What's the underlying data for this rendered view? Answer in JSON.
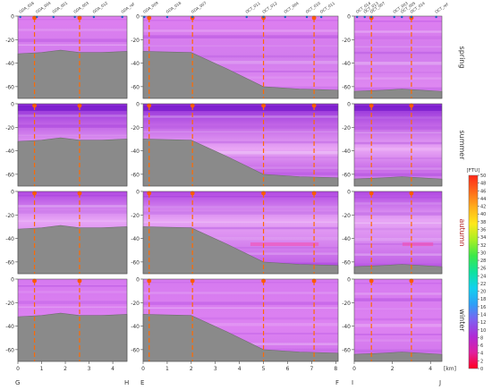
{
  "chart_data": {
    "type": "heatmap",
    "title": "",
    "colorbar": {
      "unit": "[FTU]",
      "ticks": [
        0,
        2,
        4,
        6,
        8,
        10,
        12,
        14,
        16,
        18,
        20,
        22,
        24,
        26,
        28,
        30,
        32,
        34,
        36,
        38,
        40,
        42,
        44,
        46,
        48,
        50
      ],
      "colors": [
        "#ff0020",
        "#e0209f",
        "#b02bd6",
        "#7f5ff0",
        "#2d9ff7",
        "#11d1ee",
        "#0fe29d",
        "#3be84a",
        "#a9ef24",
        "#ffe81a",
        "#ffb01c",
        "#ff6a1a",
        "#ff2818"
      ]
    },
    "seasons": [
      "spring",
      "summer",
      "autumn",
      "winter"
    ],
    "y_ticks": [
      0,
      -20,
      -40,
      -60
    ],
    "ylim": [
      -70,
      0
    ],
    "xlabel_unit": "[km]",
    "sections": [
      {
        "start_label": "G",
        "end_label": "H",
        "xlim": [
          0,
          4.6
        ],
        "x_ticks": [
          0,
          1,
          2,
          3,
          4
        ],
        "station_labels": [
          "GDA_016",
          "GDA_004",
          "GDA_001",
          "GDA_003",
          "GDA_012",
          "GDA_ref"
        ],
        "station_x": [
          0.1,
          0.8,
          1.5,
          2.4,
          3.2,
          4.4
        ],
        "profile_x": [
          0.7,
          2.6
        ],
        "bottom": [
          [
            0,
            -32
          ],
          [
            1,
            -31
          ],
          [
            1.8,
            -29
          ],
          [
            2.6,
            -31
          ],
          [
            3.5,
            -31
          ],
          [
            4.6,
            -30
          ]
        ]
      },
      {
        "start_label": "E",
        "end_label": "F",
        "xlim": [
          0,
          8.1
        ],
        "x_ticks": [
          0,
          1,
          2,
          3,
          4,
          5,
          6,
          7,
          8
        ],
        "station_labels": [
          "GDA_009",
          "GDA_018",
          "GDA_007",
          "OCT_011",
          "OCT_012",
          "OCT_004",
          "OCT_010",
          "OCT_011"
        ],
        "station_x": [
          0.05,
          1.0,
          2.05,
          4.3,
          5.0,
          5.9,
          6.8,
          7.4
        ],
        "profile_x": [
          0.25,
          2.05,
          5.0,
          7.1
        ],
        "bottom": [
          [
            0,
            -30
          ],
          [
            2.0,
            -31
          ],
          [
            3.5,
            -45
          ],
          [
            5.0,
            -60
          ],
          [
            6.5,
            -62
          ],
          [
            8.1,
            -63
          ]
        ]
      },
      {
        "start_label": "I",
        "end_label": "J",
        "xlim": [
          0,
          4.6
        ],
        "x_ticks": [
          0,
          2,
          4
        ],
        "station_labels": [
          "OCT_014",
          "OCT_013",
          "OCT_007",
          "OCT_003",
          "OCT_005",
          "OCT_014",
          "OCT_ref"
        ],
        "station_x": [
          0.15,
          0.55,
          0.9,
          2.1,
          2.5,
          3.0,
          4.3
        ],
        "profile_x": [
          0.9,
          3.0
        ],
        "bottom": [
          [
            0,
            -64
          ],
          [
            1.5,
            -63
          ],
          [
            2.5,
            -62
          ],
          [
            3.5,
            -63
          ],
          [
            4.6,
            -64
          ]
        ]
      }
    ]
  }
}
